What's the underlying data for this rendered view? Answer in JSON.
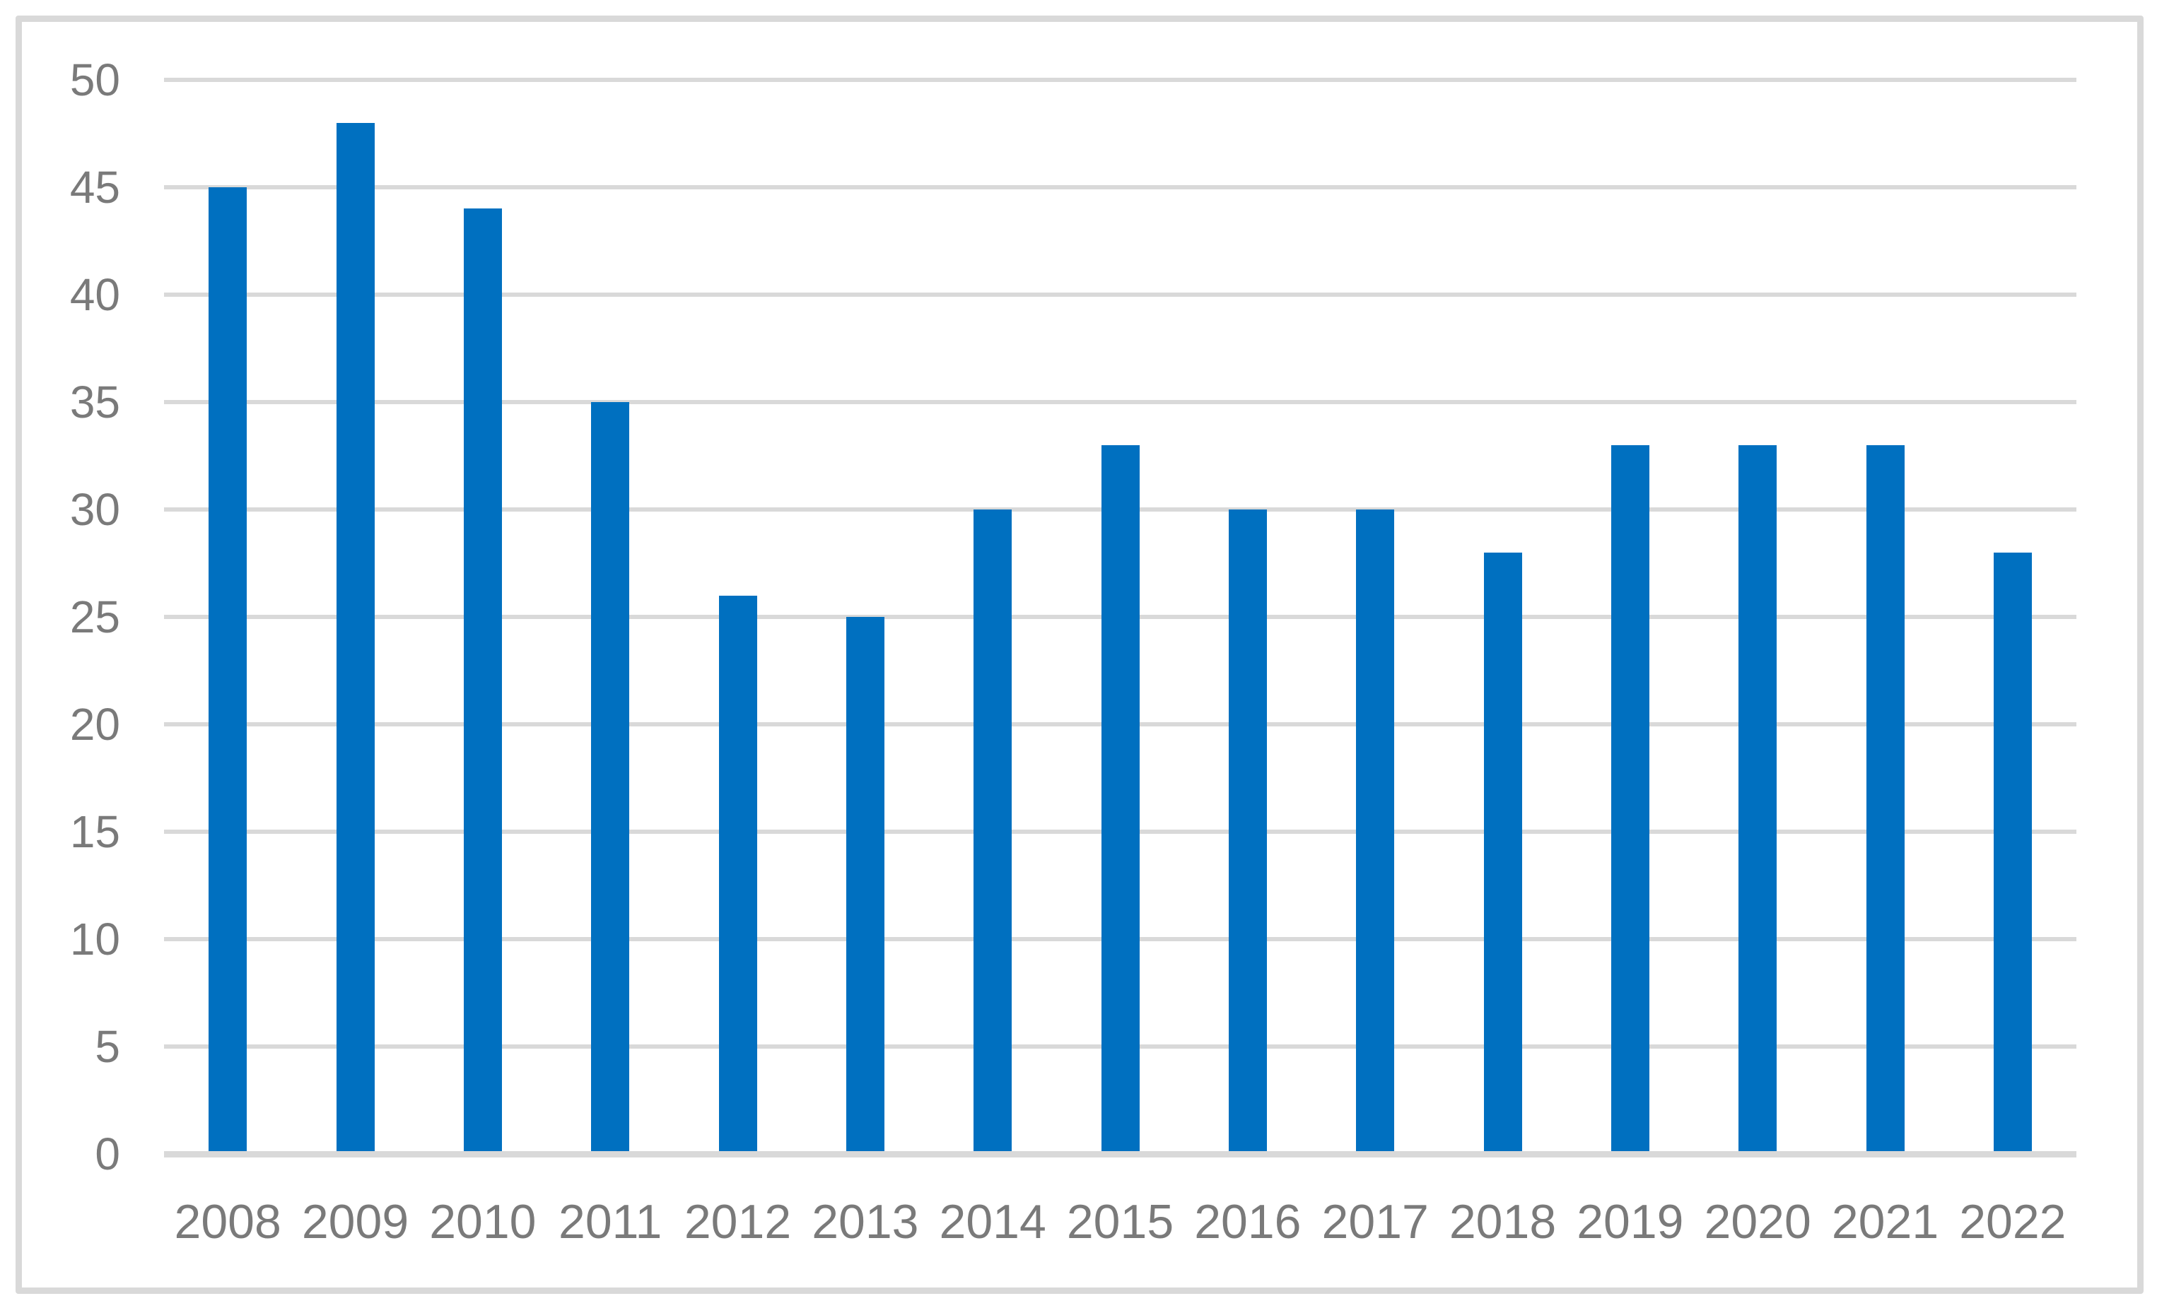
{
  "chart_data": {
    "type": "bar",
    "title": "",
    "xlabel": "",
    "ylabel": "",
    "categories": [
      "2008",
      "2009",
      "2010",
      "2011",
      "2012",
      "2013",
      "2014",
      "2015",
      "2016",
      "2017",
      "2018",
      "2019",
      "2020",
      "2021",
      "2022"
    ],
    "values": [
      45,
      48,
      44,
      35,
      26,
      25,
      30,
      33,
      30,
      30,
      28,
      33,
      33,
      33,
      28
    ],
    "ylim": [
      0,
      50
    ],
    "yticks": [
      0,
      5,
      10,
      15,
      20,
      25,
      30,
      35,
      40,
      45,
      50
    ],
    "grid": "horizontal",
    "legend": "none",
    "colors": {
      "bar": "#0070C0",
      "gridline": "#D9D9D9",
      "axis_line": "#D9D9D9",
      "tick_label": "#7A7A7A",
      "frame_border": "#D9D9D9",
      "background": "#FFFFFF"
    }
  }
}
